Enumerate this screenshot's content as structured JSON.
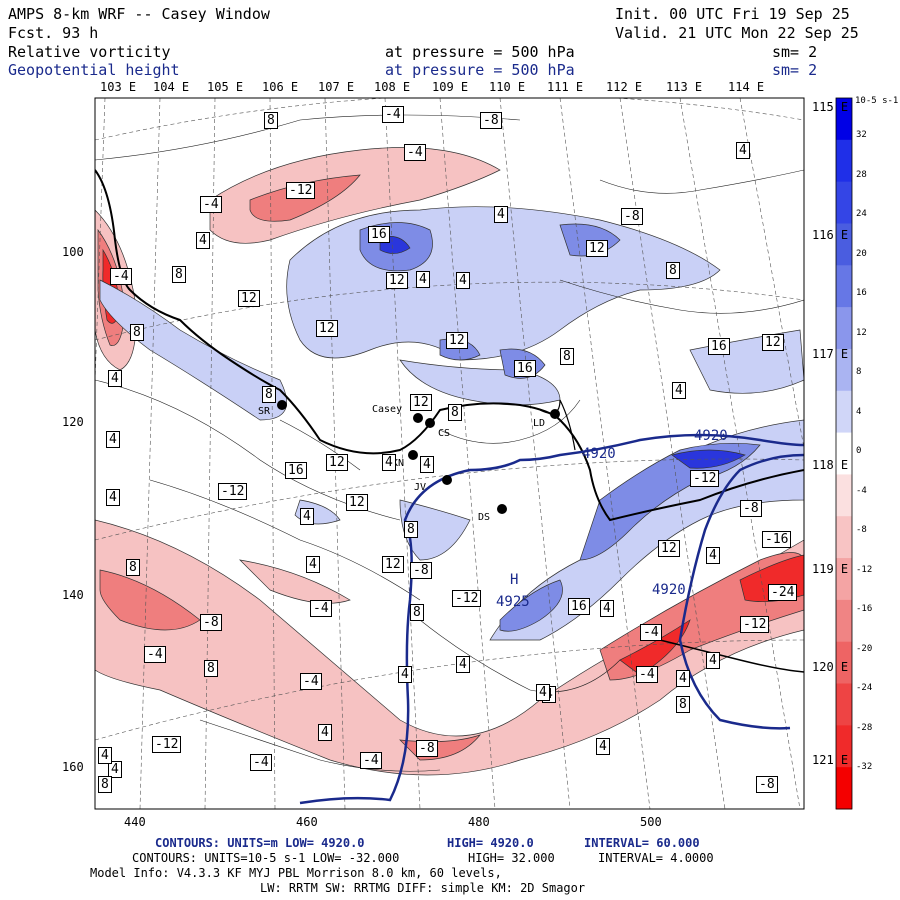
{
  "header": {
    "title": "AMPS 8-km WRF -- Casey Window",
    "init": "Init. 00 UTC Fri 19 Sep 25",
    "fcst": "Fcst.    93 h",
    "valid": "Valid. 21 UTC Mon 22 Sep 25",
    "field1": "Relative vorticity",
    "field2": "Geopotential height",
    "pressure1": "at pressure =  500 hPa",
    "pressure2": "at pressure =  500 hPa",
    "sm1": "sm= 2",
    "sm2": "sm= 2"
  },
  "axes": {
    "lon_top": [
      "103 E",
      "104 E",
      "105 E",
      "106 E",
      "107 E",
      "108 E",
      "109 E",
      "110 E",
      "111 E",
      "112 E",
      "113 E",
      "114 E"
    ],
    "lon_right": [
      "115 E",
      "116 E",
      "117 E",
      "118 E",
      "119 E",
      "120 E",
      "121 E"
    ],
    "y_left": [
      "100",
      "120",
      "140",
      "160"
    ],
    "x_bottom": [
      "440",
      "460",
      "480",
      "500"
    ]
  },
  "colorbar": {
    "unit": "10-5 s-1",
    "labels": [
      "32",
      "28",
      "24",
      "20",
      "16",
      "12",
      "8",
      "4",
      "0",
      "-4",
      "-8",
      "-12",
      "-16",
      "-20",
      "-24",
      "-28",
      "-32"
    ],
    "colors": [
      "#0000e6",
      "#1f2fe8",
      "#3445e6",
      "#4a5de0",
      "#6677e6",
      "#8a96ec",
      "#aab4f2",
      "#d0d6f8",
      "#ffffff",
      "#fbe0e0",
      "#f8c4c4",
      "#f4a4a4",
      "#f08484",
      "#ee6464",
      "#ee4444",
      "#f02a2a",
      "#f40000"
    ]
  },
  "stations": [
    {
      "code": "SR"
    },
    {
      "code": "Casey"
    },
    {
      "code": "CS"
    },
    {
      "code": "LD"
    },
    {
      "code": "KN"
    },
    {
      "code": "JV"
    },
    {
      "code": "DS"
    }
  ],
  "height_labels": [
    "4920",
    "4920",
    "4920",
    "H",
    "4925"
  ],
  "vort_labels": [
    "8",
    "-4",
    "-8",
    "-4",
    "4",
    "-12",
    "-4",
    "4",
    "-8",
    "4",
    "16",
    "8",
    "8",
    "12",
    "12",
    "4",
    "4",
    "12",
    "8",
    "12",
    "12",
    "-4",
    "4",
    "12",
    "8",
    "16",
    "8",
    "16",
    "12",
    "8",
    "4",
    "4",
    "12",
    "4",
    "16",
    "-12",
    "4",
    "12",
    "4",
    "4",
    "8",
    "12",
    "4",
    "-12",
    "-8",
    "-16",
    "8",
    "4",
    "12",
    "-8",
    "-4",
    "-24",
    "8",
    "-12",
    "16",
    "-8",
    "4",
    "4",
    "-12",
    "-4",
    "8",
    "-4",
    "-4",
    "4",
    "8",
    "4",
    "-12",
    "4",
    "4",
    "-8",
    "4",
    "4",
    "4",
    "-4",
    "8",
    "-8",
    "-4",
    "4",
    "-4",
    "4",
    "4"
  ],
  "footer": {
    "line1": {
      "a": "CONTOURS:  UNITS=m  LOW=  4920.0",
      "b": "HIGH=  4920.0",
      "c": "INTERVAL=  60.000"
    },
    "line2": {
      "a": "CONTOURS:  UNITS=10-5 s-1  LOW= -32.000",
      "b": "HIGH=  32.000",
      "c": "INTERVAL=  4.0000"
    },
    "line3": "Model Info: V4.3.3   KF    MYJ PBL  Morrison         8.0 km,  60 levels,",
    "line4": "LW: RRTM SW: RRTMG   DIFF: simple KM: 2D Smagor"
  }
}
